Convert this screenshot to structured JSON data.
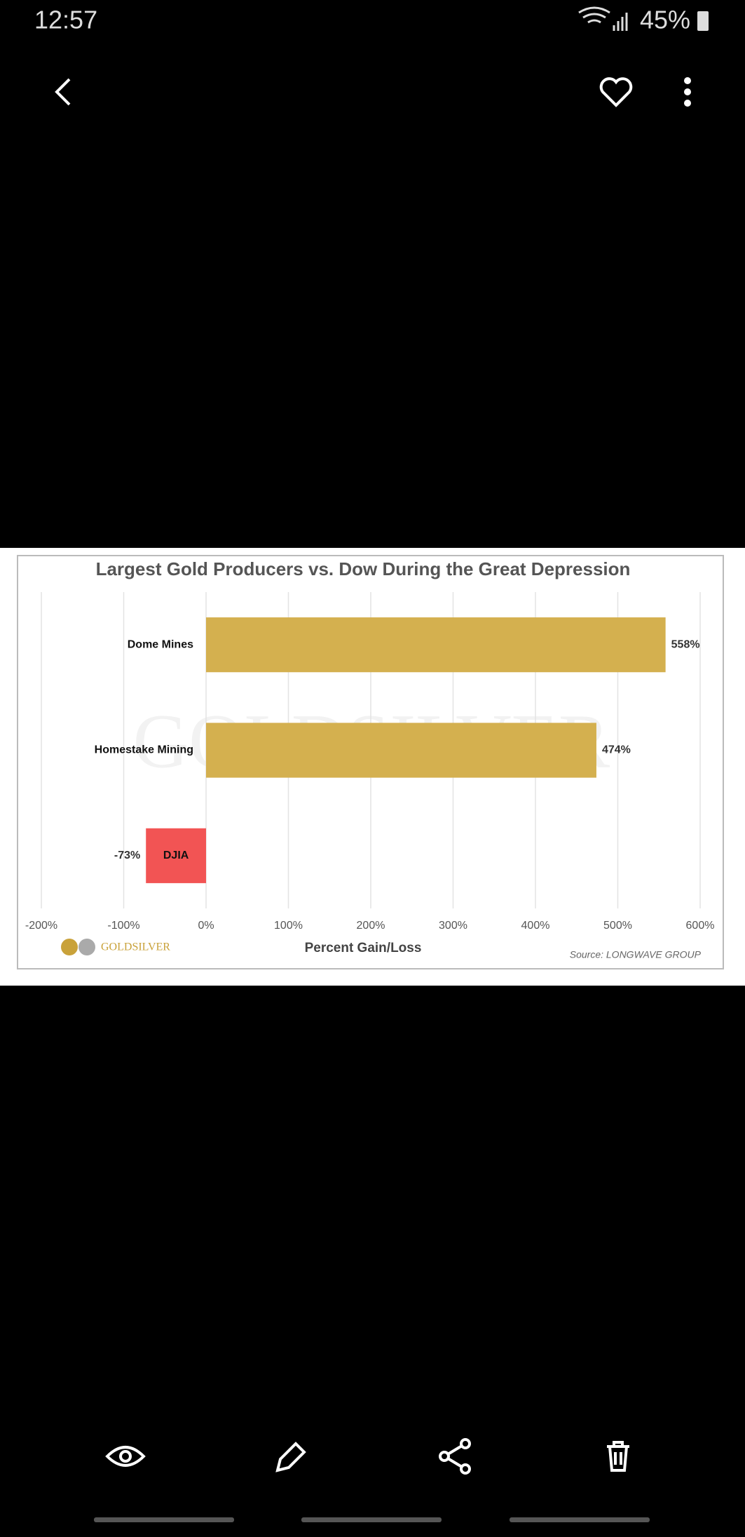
{
  "status_bar": {
    "time": "12:57",
    "battery": "45%"
  },
  "chart_data": {
    "type": "bar",
    "orientation": "horizontal",
    "title": "Largest Gold Producers vs. Dow During the Great Depression",
    "categories": [
      "Dome Mines",
      "Homestake Mining",
      "DJIA"
    ],
    "values": [
      558,
      474,
      -73
    ],
    "value_labels": [
      "558%",
      "474%",
      "-73%"
    ],
    "colors": [
      "#d4b04f",
      "#d4b04f",
      "#f25454"
    ],
    "xlim": [
      -200,
      600
    ],
    "xticks": [
      {
        "value": -200,
        "label": "-200%"
      },
      {
        "value": -100,
        "label": "-100%"
      },
      {
        "value": 0,
        "label": "0%"
      },
      {
        "value": 100,
        "label": "100%"
      },
      {
        "value": 200,
        "label": "200%"
      },
      {
        "value": 300,
        "label": "300%"
      },
      {
        "value": 400,
        "label": "400%"
      },
      {
        "value": 500,
        "label": "500%"
      },
      {
        "value": 600,
        "label": "600%"
      }
    ],
    "xlabel": "Percent Gain/Loss",
    "source": "Source: LONGWAVE GROUP",
    "logo": "GOLDSILVER",
    "watermark": "GOLDSILVER",
    "grid": true
  }
}
